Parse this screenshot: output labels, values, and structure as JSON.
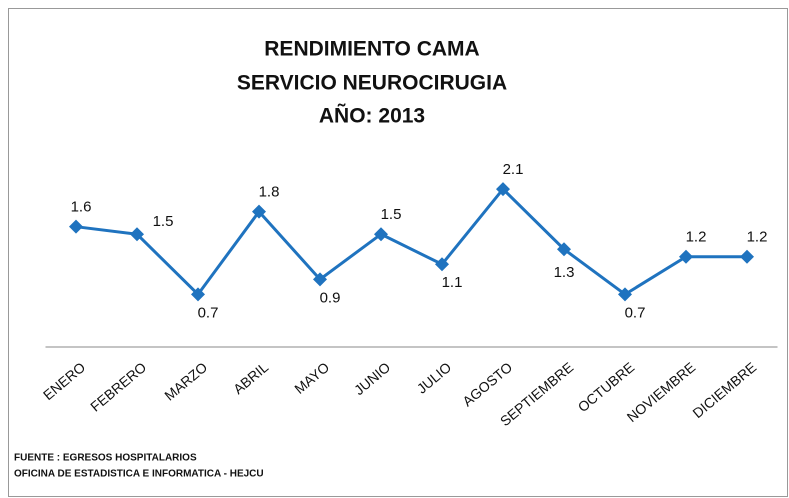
{
  "chart_data": {
    "type": "line",
    "title_lines": [
      "RENDIMIENTO CAMA",
      "SERVICIO NEUROCIRUGIA",
      "AÑO: 2013"
    ],
    "categories": [
      "ENERO",
      "FEBRERO",
      "MARZO",
      "ABRIL",
      "MAYO",
      "JUNIO",
      "JULIO",
      "AGOSTO",
      "SEPTIEMBRE",
      "OCTUBRE",
      "NOVIEMBRE",
      "DICIEMBRE"
    ],
    "values": [
      1.6,
      1.5,
      0.7,
      1.8,
      0.9,
      1.5,
      1.1,
      2.1,
      1.3,
      0.7,
      1.2,
      1.2
    ],
    "color": "#1f73bf",
    "ylim": [
      0,
      2.5
    ],
    "notes": [
      "FUENTE : EGRESOS HOSPITALARIOS",
      "OFICINA DE ESTADISTICA E INFORMATICA - HEJCU"
    ]
  }
}
